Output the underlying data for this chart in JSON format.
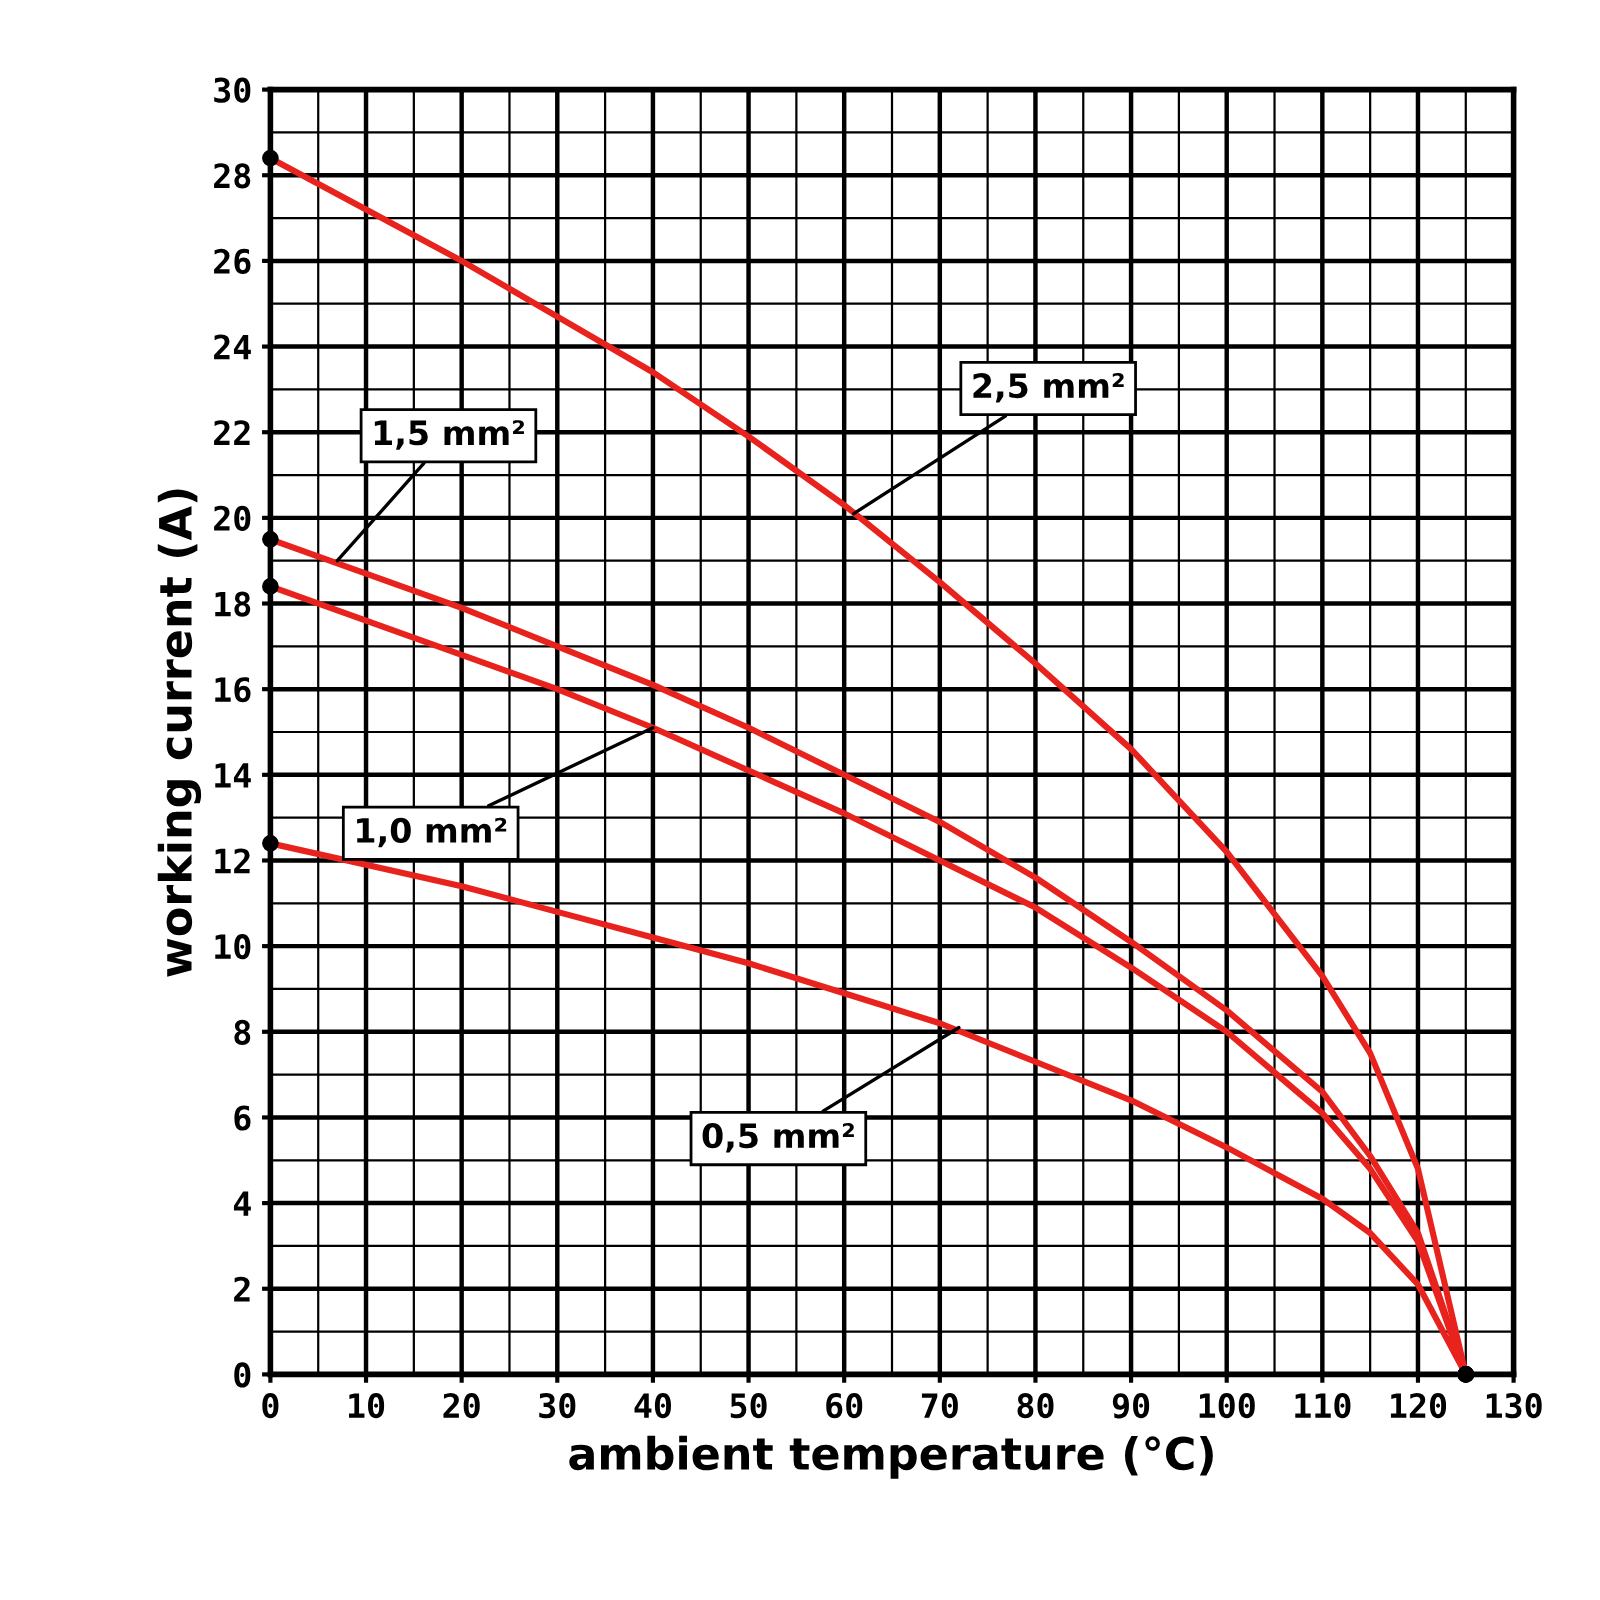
{
  "chart_data": {
    "type": "line",
    "xlabel": "ambient temperature (°C)",
    "ylabel": "working current (A)",
    "x": [
      0,
      10,
      20,
      30,
      40,
      50,
      60,
      70,
      80,
      90,
      100,
      110,
      115,
      120,
      125
    ],
    "series": [
      {
        "color": "#e8231e",
        "values": [
          28.4,
          27.2,
          26.0,
          24.7,
          23.4,
          21.9,
          20.3,
          18.5,
          16.6,
          14.6,
          12.2,
          9.3,
          7.5,
          4.8,
          0
        ]
      },
      {
        "color": "#e8231e",
        "values": [
          19.5,
          18.7,
          17.9,
          17.0,
          16.1,
          15.1,
          14.0,
          12.9,
          11.6,
          10.1,
          8.5,
          6.6,
          5.1,
          3.3,
          0
        ]
      },
      {
        "color": "#e8231e",
        "values": [
          18.4,
          17.6,
          16.8,
          16.0,
          15.1,
          14.1,
          13.1,
          12.0,
          10.9,
          9.5,
          8.0,
          6.1,
          4.8,
          3.1,
          0
        ]
      },
      {
        "color": "#e8231e",
        "values": [
          12.4,
          11.9,
          11.4,
          10.8,
          10.2,
          9.6,
          8.9,
          8.2,
          7.3,
          6.4,
          5.3,
          4.1,
          3.3,
          2.1,
          0
        ]
      }
    ],
    "annotations": [
      {
        "text": "2,5 mm²",
        "x": 61,
        "y": 20.1
      },
      {
        "text": "1,5 mm²",
        "x": 7,
        "y": 19.0
      },
      {
        "text": "1,0 mm²",
        "x": 40,
        "y": 15.1
      },
      {
        "text": "0,5 mm²",
        "x": 72,
        "y": 8.1
      }
    ],
    "xlim": [
      0,
      130
    ],
    "xticks": [
      0,
      10,
      20,
      30,
      40,
      50,
      60,
      70,
      80,
      90,
      100,
      110,
      120,
      130
    ],
    "ylim": [
      0,
      30
    ],
    "yticks": [
      0,
      2,
      4,
      6,
      8,
      10,
      12,
      14,
      16,
      18,
      20,
      22,
      24,
      26,
      28,
      30
    ],
    "grid": true,
    "legend": false
  }
}
